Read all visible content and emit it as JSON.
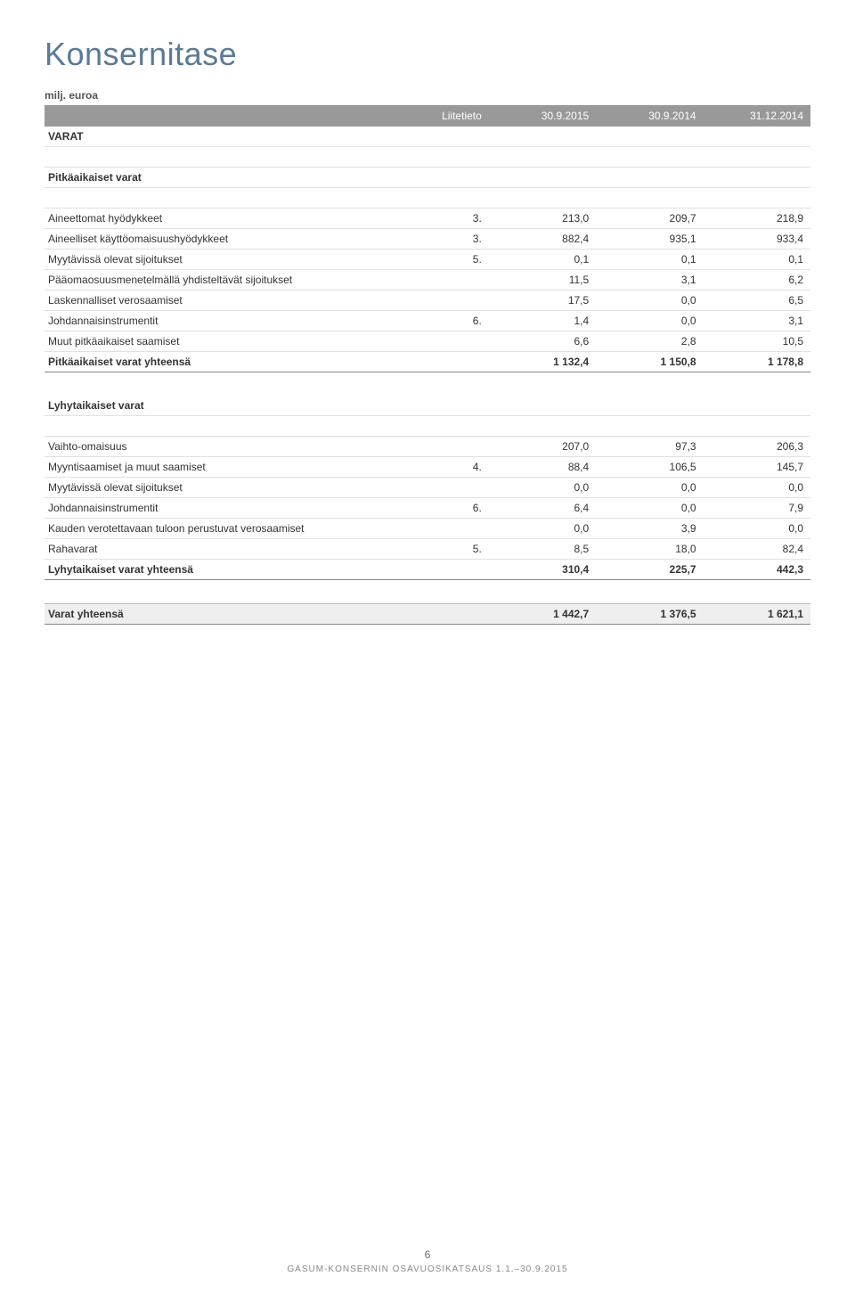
{
  "title": "Konsernitase",
  "unit_label": "milj. euroa",
  "columns": {
    "note": "Liitetieto",
    "c1": "30.9.2015",
    "c2": "30.9.2014",
    "c3": "31.12.2014"
  },
  "sections": {
    "varat": {
      "heading": "VARAT",
      "groups": [
        {
          "heading": "Pitkäaikaiset varat",
          "rows": [
            {
              "label": "Aineettomat hyödykkeet",
              "note": "3.",
              "v1": "213,0",
              "v2": "209,7",
              "v3": "218,9"
            },
            {
              "label": "Aineelliset käyttöomaisuushyödykkeet",
              "note": "3.",
              "v1": "882,4",
              "v2": "935,1",
              "v3": "933,4"
            },
            {
              "label": "Myytävissä olevat sijoitukset",
              "note": "5.",
              "v1": "0,1",
              "v2": "0,1",
              "v3": "0,1"
            },
            {
              "label": "Pääomaosuusmenetelmällä yhdisteltävät sijoitukset",
              "note": "",
              "v1": "11,5",
              "v2": "3,1",
              "v3": "6,2"
            },
            {
              "label": "Laskennalliset verosaamiset",
              "note": "",
              "v1": "17,5",
              "v2": "0,0",
              "v3": "6,5"
            },
            {
              "label": "Johdannaisinstrumentit",
              "note": "6.",
              "v1": "1,4",
              "v2": "0,0",
              "v3": "3,1"
            },
            {
              "label": "Muut pitkäaikaiset saamiset",
              "note": "",
              "v1": "6,6",
              "v2": "2,8",
              "v3": "10,5"
            }
          ],
          "subtotal": {
            "label": "Pitkäaikaiset varat yhteensä",
            "v1": "1 132,4",
            "v2": "1 150,8",
            "v3": "1 178,8"
          }
        },
        {
          "heading": "Lyhytaikaiset varat",
          "rows": [
            {
              "label": "Vaihto-omaisuus",
              "note": "",
              "v1": "207,0",
              "v2": "97,3",
              "v3": "206,3"
            },
            {
              "label": "Myyntisaamiset ja muut saamiset",
              "note": "4.",
              "v1": "88,4",
              "v2": "106,5",
              "v3": "145,7"
            },
            {
              "label": "Myytävissä olevat sijoitukset",
              "note": "",
              "v1": "0,0",
              "v2": "0,0",
              "v3": "0,0"
            },
            {
              "label": "Johdannaisinstrumentit",
              "note": "6.",
              "v1": "6,4",
              "v2": "0,0",
              "v3": "7,9"
            },
            {
              "label": "Kauden verotettavaan tuloon perustuvat verosaamiset",
              "note": "",
              "v1": "0,0",
              "v2": "3,9",
              "v3": "0,0"
            },
            {
              "label": "Rahavarat",
              "note": "5.",
              "v1": "8,5",
              "v2": "18,0",
              "v3": "82,4"
            }
          ],
          "subtotal": {
            "label": "Lyhytaikaiset varat yhteensä",
            "v1": "310,4",
            "v2": "225,7",
            "v3": "442,3"
          }
        }
      ],
      "total": {
        "label": "Varat yhteensä",
        "v1": "1 442,7",
        "v2": "1 376,5",
        "v3": "1 621,1"
      }
    }
  },
  "footer": {
    "page": "6",
    "text": "GASUM-KONSERNIN OSAVUOSIKATSAUS 1.1.–30.9.2015"
  }
}
